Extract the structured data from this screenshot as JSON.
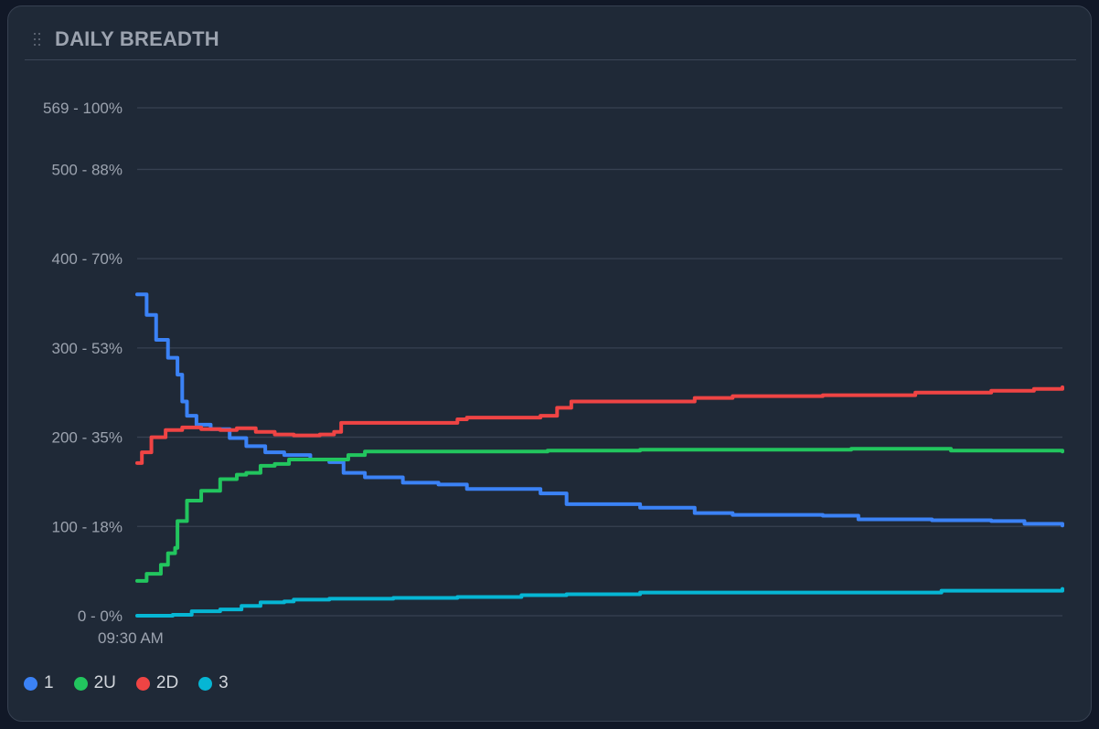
{
  "panel": {
    "title": "DAILY BREADTH",
    "drag_handle_icon": "grip-dots-icon"
  },
  "chart_data": {
    "type": "line",
    "title": "",
    "xlabel": "",
    "ylabel": "",
    "ylim": [
      0,
      569
    ],
    "y_ticks": [
      {
        "value": 0,
        "label": "0 - 0%"
      },
      {
        "value": 100,
        "label": "100 - 18%"
      },
      {
        "value": 200,
        "label": "200 - 35%"
      },
      {
        "value": 300,
        "label": "300 - 53%"
      },
      {
        "value": 400,
        "label": "400 - 70%"
      },
      {
        "value": 500,
        "label": "500 - 88%"
      },
      {
        "value": 569,
        "label": "569 - 100%"
      }
    ],
    "x_ticks": [
      {
        "value": "09:30",
        "label": "09:30 AM"
      }
    ],
    "xlim": [
      "09:30",
      "16:00"
    ],
    "grid": true,
    "legend_position": "bottom-left",
    "series": [
      {
        "name": "1",
        "color": "#3b82f6",
        "points": [
          [
            "09:30",
            360
          ],
          [
            "09:34",
            337
          ],
          [
            "09:38",
            309
          ],
          [
            "09:43",
            289
          ],
          [
            "09:47",
            270
          ],
          [
            "09:49",
            240
          ],
          [
            "09:51",
            224
          ],
          [
            "09:55",
            214
          ],
          [
            "10:01",
            209
          ],
          [
            "10:09",
            199
          ],
          [
            "10:16",
            190
          ],
          [
            "10:24",
            183
          ],
          [
            "10:32",
            180
          ],
          [
            "10:43",
            175
          ],
          [
            "10:51",
            172
          ],
          [
            "10:57",
            160
          ],
          [
            "11:06",
            155
          ],
          [
            "11:22",
            149
          ],
          [
            "11:37",
            147
          ],
          [
            "11:49",
            142
          ],
          [
            "12:12",
            142
          ],
          [
            "12:20",
            137
          ],
          [
            "12:31",
            125
          ],
          [
            "13:02",
            121
          ],
          [
            "13:25",
            115
          ],
          [
            "13:41",
            113
          ],
          [
            "14:19",
            112
          ],
          [
            "14:34",
            108
          ],
          [
            "15:05",
            107
          ],
          [
            "15:30",
            106
          ],
          [
            "15:44",
            103
          ],
          [
            "16:00",
            101
          ]
        ]
      },
      {
        "name": "2U",
        "color": "#22c55e",
        "points": [
          [
            "09:30",
            39
          ],
          [
            "09:34",
            47
          ],
          [
            "09:40",
            57
          ],
          [
            "09:43",
            70
          ],
          [
            "09:46",
            76
          ],
          [
            "09:47",
            106
          ],
          [
            "09:51",
            129
          ],
          [
            "09:57",
            140
          ],
          [
            "10:05",
            153
          ],
          [
            "10:12",
            158
          ],
          [
            "10:16",
            160
          ],
          [
            "10:22",
            168
          ],
          [
            "10:28",
            170
          ],
          [
            "10:34",
            175
          ],
          [
            "10:47",
            175
          ],
          [
            "10:59",
            180
          ],
          [
            "11:06",
            184
          ],
          [
            "11:45",
            184
          ],
          [
            "12:23",
            185
          ],
          [
            "13:02",
            186
          ],
          [
            "13:41",
            186
          ],
          [
            "14:31",
            187
          ],
          [
            "15:05",
            187
          ],
          [
            "15:13",
            185
          ],
          [
            "16:00",
            184
          ]
        ]
      },
      {
        "name": "2D",
        "color": "#ef4444",
        "points": [
          [
            "09:30",
            171
          ],
          [
            "09:32",
            183
          ],
          [
            "09:36",
            200
          ],
          [
            "09:42",
            208
          ],
          [
            "09:49",
            211
          ],
          [
            "09:57",
            209
          ],
          [
            "10:05",
            208
          ],
          [
            "10:12",
            210
          ],
          [
            "10:20",
            206
          ],
          [
            "10:28",
            203
          ],
          [
            "10:36",
            202
          ],
          [
            "10:47",
            203
          ],
          [
            "10:53",
            206
          ],
          [
            "10:56",
            216
          ],
          [
            "11:18",
            216
          ],
          [
            "11:45",
            220
          ],
          [
            "11:49",
            222
          ],
          [
            "12:20",
            224
          ],
          [
            "12:27",
            233
          ],
          [
            "12:33",
            240
          ],
          [
            "13:02",
            240
          ],
          [
            "13:25",
            244
          ],
          [
            "13:41",
            246
          ],
          [
            "14:19",
            247
          ],
          [
            "14:58",
            250
          ],
          [
            "15:30",
            252
          ],
          [
            "15:48",
            254
          ],
          [
            "16:00",
            256
          ]
        ]
      },
      {
        "name": "3",
        "color": "#06b6d4",
        "points": [
          [
            "09:30",
            0
          ],
          [
            "09:45",
            1
          ],
          [
            "09:53",
            5
          ],
          [
            "10:05",
            7
          ],
          [
            "10:14",
            11
          ],
          [
            "10:22",
            15
          ],
          [
            "10:32",
            16
          ],
          [
            "10:36",
            18
          ],
          [
            "10:51",
            19
          ],
          [
            "11:18",
            20
          ],
          [
            "11:45",
            21
          ],
          [
            "12:12",
            23
          ],
          [
            "12:31",
            24
          ],
          [
            "13:02",
            26
          ],
          [
            "15:05",
            26
          ],
          [
            "15:09",
            28
          ],
          [
            "16:00",
            30
          ]
        ]
      }
    ]
  }
}
